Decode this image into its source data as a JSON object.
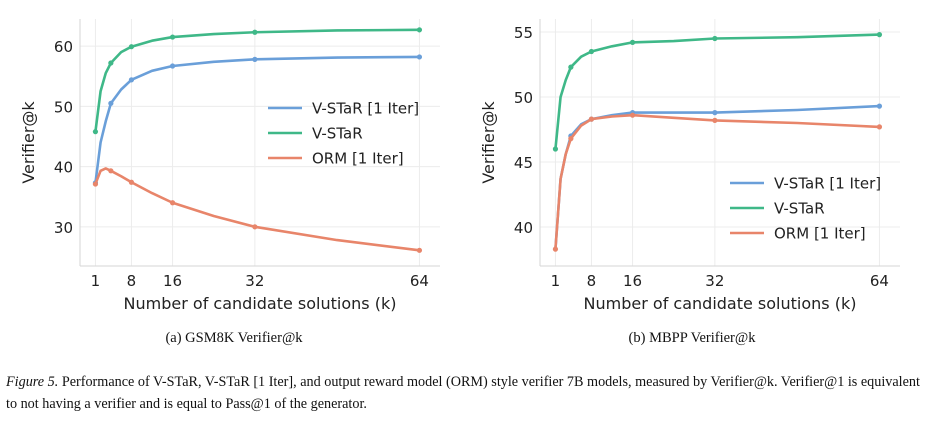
{
  "figure": {
    "caption_label": "Figure 5.",
    "caption_text": " Performance of V-STaR, V-STaR [1 Iter], and output reward model (ORM) style verifier 7B models, measured by Verifier@k. Verifier@1 is equivalent to not having a verifier and is equal to Pass@1 of the generator."
  },
  "colors": {
    "vstar_1iter": "#6a9fd9",
    "vstar": "#3fb888",
    "orm_1iter": "#e8856a"
  },
  "chart_data": [
    {
      "type": "line",
      "subcaption": "(a) GSM8K Verifier@k",
      "xlabel": "Number of candidate solutions (k)",
      "ylabel": "Verifier@k",
      "xlim": [
        -2,
        68
      ],
      "ylim": [
        23.5,
        64.5
      ],
      "xticks": [
        1,
        8,
        16,
        32,
        64
      ],
      "yticks": [
        30,
        40,
        50,
        60
      ],
      "grid": true,
      "legend_position": "center-right",
      "series": [
        {
          "name": "V-STaR [1 Iter]",
          "x": [
            1,
            2,
            3,
            4,
            6,
            8,
            12,
            16,
            24,
            32,
            48,
            64
          ],
          "values": [
            37.3,
            44.0,
            47.5,
            50.5,
            52.8,
            54.4,
            55.9,
            56.7,
            57.4,
            57.8,
            58.1,
            58.2
          ],
          "markers": [
            1,
            4,
            8,
            16,
            32,
            64
          ]
        },
        {
          "name": "V-STaR",
          "x": [
            1,
            2,
            3,
            4,
            6,
            8,
            12,
            16,
            24,
            32,
            48,
            64
          ],
          "values": [
            45.8,
            52.5,
            55.5,
            57.2,
            59.0,
            59.9,
            60.9,
            61.5,
            62.0,
            62.3,
            62.6,
            62.7
          ],
          "markers": [
            1,
            4,
            8,
            16,
            32,
            64
          ]
        },
        {
          "name": "ORM [1 Iter]",
          "x": [
            1,
            2,
            3,
            4,
            6,
            8,
            12,
            16,
            24,
            32,
            48,
            64
          ],
          "values": [
            37.1,
            39.3,
            39.7,
            39.3,
            38.4,
            37.4,
            35.6,
            34.0,
            31.8,
            30.0,
            27.8,
            26.1
          ],
          "markers": [
            1,
            4,
            8,
            16,
            32,
            64
          ]
        }
      ]
    },
    {
      "type": "line",
      "subcaption": "(b) MBPP Verifier@k",
      "xlabel": "Number of candidate solutions (k)",
      "ylabel": "Verifier@k",
      "xlim": [
        -2,
        68
      ],
      "ylim": [
        37.0,
        56.0
      ],
      "xticks": [
        1,
        8,
        16,
        32,
        64
      ],
      "yticks": [
        40,
        45,
        50,
        55
      ],
      "grid": true,
      "legend_position": "lower-right",
      "series": [
        {
          "name": "V-STaR [1 Iter]",
          "x": [
            1,
            2,
            3,
            4,
            6,
            8,
            12,
            16,
            24,
            32,
            48,
            64
          ],
          "values": [
            38.3,
            43.7,
            45.6,
            47.0,
            47.9,
            48.3,
            48.6,
            48.8,
            48.8,
            48.8,
            49.0,
            49.3
          ],
          "markers": [
            4,
            8,
            16,
            32,
            64
          ]
        },
        {
          "name": "V-STaR",
          "x": [
            1,
            2,
            3,
            4,
            6,
            8,
            12,
            16,
            24,
            32,
            48,
            64
          ],
          "values": [
            46.0,
            50.0,
            51.3,
            52.3,
            53.1,
            53.5,
            53.9,
            54.2,
            54.3,
            54.5,
            54.6,
            54.8
          ],
          "markers": [
            1,
            4,
            8,
            16,
            32,
            64
          ]
        },
        {
          "name": "ORM [1 Iter]",
          "x": [
            1,
            2,
            3,
            4,
            6,
            8,
            12,
            16,
            24,
            32,
            48,
            64
          ],
          "values": [
            38.3,
            43.7,
            45.6,
            46.8,
            47.8,
            48.3,
            48.5,
            48.6,
            48.4,
            48.2,
            48.0,
            47.7
          ],
          "markers": [
            1,
            4,
            8,
            16,
            32,
            64
          ]
        }
      ]
    }
  ]
}
